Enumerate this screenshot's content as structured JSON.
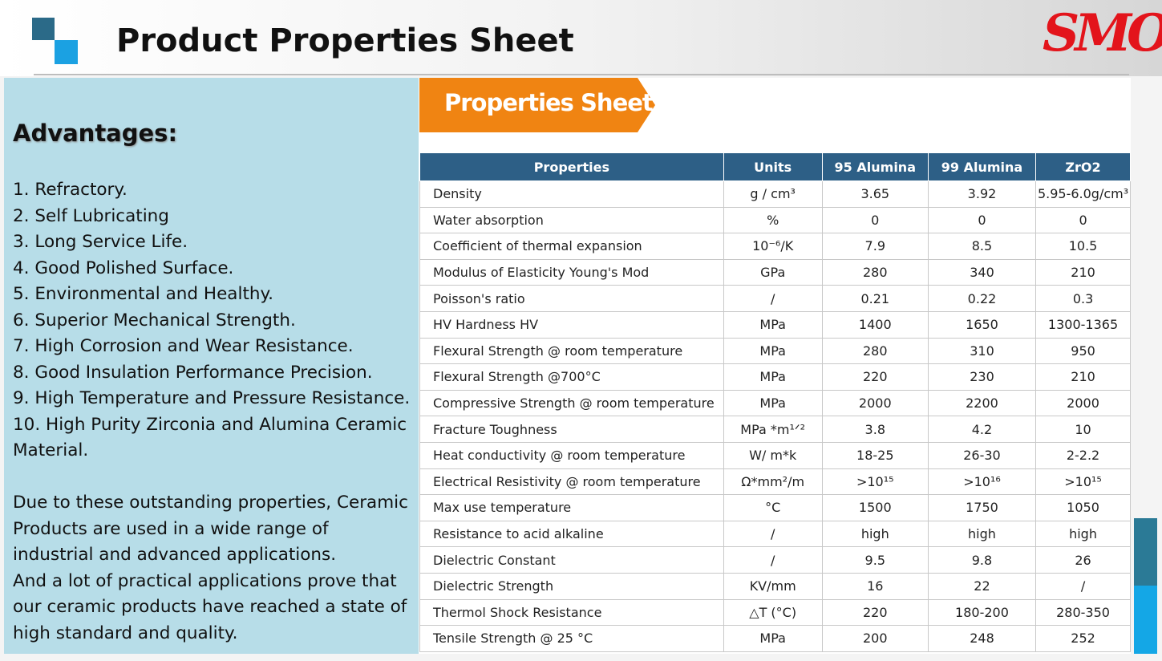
{
  "header": {
    "title": "Product Properties Sheet",
    "logo": "SMO"
  },
  "advantages": {
    "heading": "Advantages:",
    "items": [
      "1. Refractory.",
      "2. Self Lubricating",
      "3. Long Service Life.",
      "4. Good Polished Surface.",
      "5. Environmental and Healthy.",
      "6. Superior Mechanical Strength.",
      "7. High Corrosion and Wear Resistance.",
      "8. Good Insulation Performance Precision.",
      "9. High Temperature and Pressure Resistance.",
      "10. High Purity Zirconia and Alumina Ceramic Material."
    ],
    "paragraphs": [
      "Due to these outstanding properties, Ceramic Products are used in a wide range of industrial and advanced applications.",
      "And a lot of practical applications prove that our ceramic products have reached a state of high standard and quality."
    ]
  },
  "badge": "Properties Sheet",
  "table": {
    "columns": [
      "Properties",
      "Units",
      "95 Alumina",
      "99  Alumina",
      "ZrO2"
    ],
    "rows": [
      [
        "Density",
        "g / cm³",
        "3.65",
        "3.92",
        "5.95-6.0g/cm³"
      ],
      [
        "Water absorption",
        "%",
        "0",
        "0",
        "0"
      ],
      [
        "Coefficient of thermal expansion",
        "10⁻⁶/K",
        "7.9",
        "8.5",
        "10.5"
      ],
      [
        "Modulus of Elasticity Young's Mod",
        "GPa",
        "280",
        "340",
        "210"
      ],
      [
        "Poisson's ratio",
        "/",
        "0.21",
        "0.22",
        "0.3"
      ],
      [
        "HV Hardness  HV",
        "MPa",
        "1400",
        "1650",
        "1300-1365"
      ],
      [
        "Flexural Strength @ room temperature",
        "MPa",
        "280",
        "310",
        "950"
      ],
      [
        "Flexural Strength @700°C",
        "MPa",
        "220",
        "230",
        "210"
      ],
      [
        "Compressive Strength @ room temperature",
        "MPa",
        "2000",
        "2200",
        "2000"
      ],
      [
        "Fracture Toughness",
        "MPa *m¹ᐟ²",
        "3.8",
        "4.2",
        "10"
      ],
      [
        "Heat conductivity @ room temperature",
        "W/ m*k",
        "18-25",
        "26-30",
        "2-2.2"
      ],
      [
        "Electrical Resistivity @ room temperature",
        "Ω*mm²/m",
        ">10¹⁵",
        ">10¹⁶",
        ">10¹⁵"
      ],
      [
        "Max use temperature",
        "°C",
        "1500",
        "1750",
        "1050"
      ],
      [
        "Resistance to acid alkaline",
        "/",
        "high",
        "high",
        "high"
      ],
      [
        "Dielectric Constant",
        "/",
        "9.5",
        "9.8",
        "26"
      ],
      [
        "Dielectric  Strength",
        "KV/mm",
        "16",
        "22",
        "/"
      ],
      [
        "Thermol Shock Resistance",
        "△T (°C)",
        "220",
        "180-200",
        "280-350"
      ],
      [
        "Tensile Strength @ 25 °C",
        "MPa",
        "200",
        "248",
        "252"
      ]
    ]
  }
}
